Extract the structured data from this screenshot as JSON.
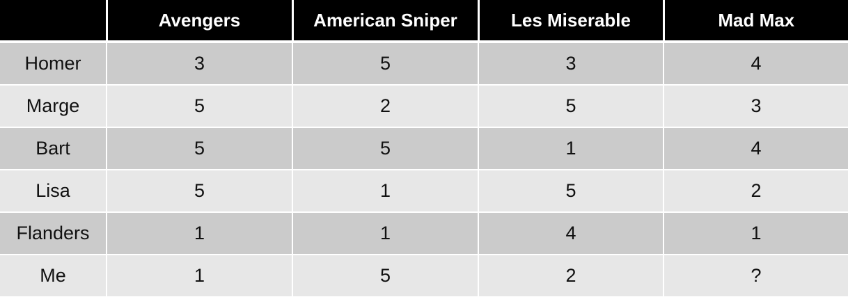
{
  "table": {
    "corner_label": "",
    "columns": [
      "Avengers",
      "American Sniper",
      "Les Miserable",
      "Mad Max"
    ],
    "rows": [
      {
        "name": "Homer",
        "cells": [
          "3",
          "5",
          "3",
          "4"
        ]
      },
      {
        "name": "Marge",
        "cells": [
          "5",
          "2",
          "5",
          "3"
        ]
      },
      {
        "name": "Bart",
        "cells": [
          "5",
          "5",
          "1",
          "4"
        ]
      },
      {
        "name": "Lisa",
        "cells": [
          "5",
          "1",
          "5",
          "2"
        ]
      },
      {
        "name": "Flanders",
        "cells": [
          "1",
          "1",
          "4",
          "1"
        ]
      },
      {
        "name": "Me",
        "cells": [
          "1",
          "5",
          "2",
          "?"
        ]
      }
    ]
  },
  "colors": {
    "header_bg": "#000000",
    "header_text": "#ffffff",
    "row_dark": "#cbcbcb",
    "row_light": "#e7e7e7"
  }
}
